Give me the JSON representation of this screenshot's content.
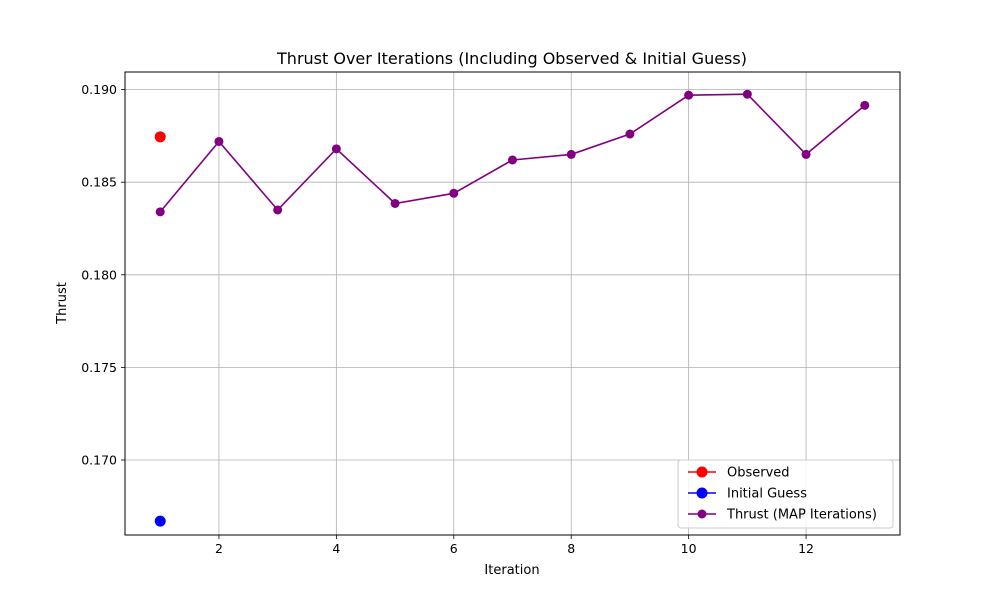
{
  "chart_data": {
    "type": "line",
    "title": "Thrust Over Iterations (Including Observed & Initial Guess)",
    "xlabel": "Iteration",
    "ylabel": "Thrust",
    "xlim": [
      0.4,
      13.6
    ],
    "ylim": [
      0.16595,
      0.19095
    ],
    "xticks": [
      2,
      4,
      6,
      8,
      10,
      12
    ],
    "yticks": [
      0.17,
      0.175,
      0.18,
      0.185,
      0.19
    ],
    "ytick_labels": [
      "0.170",
      "0.175",
      "0.180",
      "0.185",
      "0.190"
    ],
    "grid": true,
    "legend_position": "lower-right",
    "series": [
      {
        "name": "Observed",
        "color": "#ff0000",
        "marker": "circle",
        "points": [
          {
            "x": 1,
            "y": 0.18745
          }
        ]
      },
      {
        "name": "Initial Guess",
        "color": "#0000ff",
        "marker": "circle",
        "points": [
          {
            "x": 1,
            "y": 0.1667
          }
        ]
      },
      {
        "name": "Thrust (MAP Iterations)",
        "color": "#800080",
        "marker": "circle",
        "line": true,
        "points": [
          {
            "x": 1,
            "y": 0.1834
          },
          {
            "x": 2,
            "y": 0.1872
          },
          {
            "x": 3,
            "y": 0.1835
          },
          {
            "x": 4,
            "y": 0.1868
          },
          {
            "x": 5,
            "y": 0.18385
          },
          {
            "x": 6,
            "y": 0.1844
          },
          {
            "x": 7,
            "y": 0.1862
          },
          {
            "x": 8,
            "y": 0.1865
          },
          {
            "x": 9,
            "y": 0.1876
          },
          {
            "x": 10,
            "y": 0.1897
          },
          {
            "x": 11,
            "y": 0.18975
          },
          {
            "x": 12,
            "y": 0.1865
          },
          {
            "x": 13,
            "y": 0.18915
          }
        ]
      }
    ]
  }
}
